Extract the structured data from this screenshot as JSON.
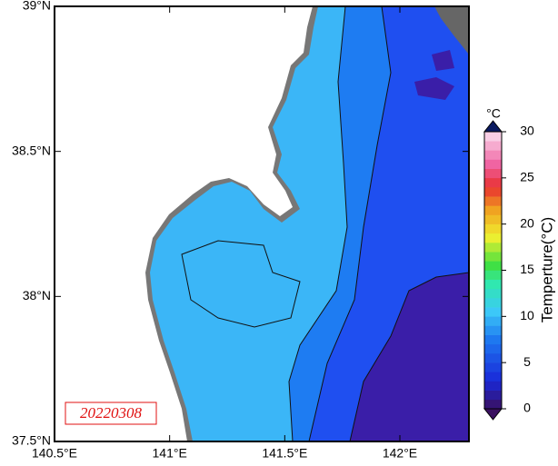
{
  "map": {
    "date": "20220308",
    "xlim": [
      140.5,
      142.3
    ],
    "ylim": [
      37.5,
      39
    ],
    "xticks": [
      {
        "value": 140.5,
        "label": "140.5°E"
      },
      {
        "value": 141,
        "label": "141°E"
      },
      {
        "value": 141.5,
        "label": "141.5°E"
      },
      {
        "value": 142,
        "label": "142°E"
      }
    ],
    "yticks": [
      {
        "value": 37.5,
        "label": "37.5°N"
      },
      {
        "value": 38,
        "label": "38°N"
      },
      {
        "value": 38.5,
        "label": "38.5°N"
      },
      {
        "value": 39,
        "label": "39°N"
      }
    ],
    "colorbar": {
      "title": "Temperture(°C)",
      "unit": "°C",
      "range": [
        0,
        30
      ],
      "ticks": [
        0,
        5,
        10,
        15,
        20,
        25,
        30
      ]
    }
  }
}
